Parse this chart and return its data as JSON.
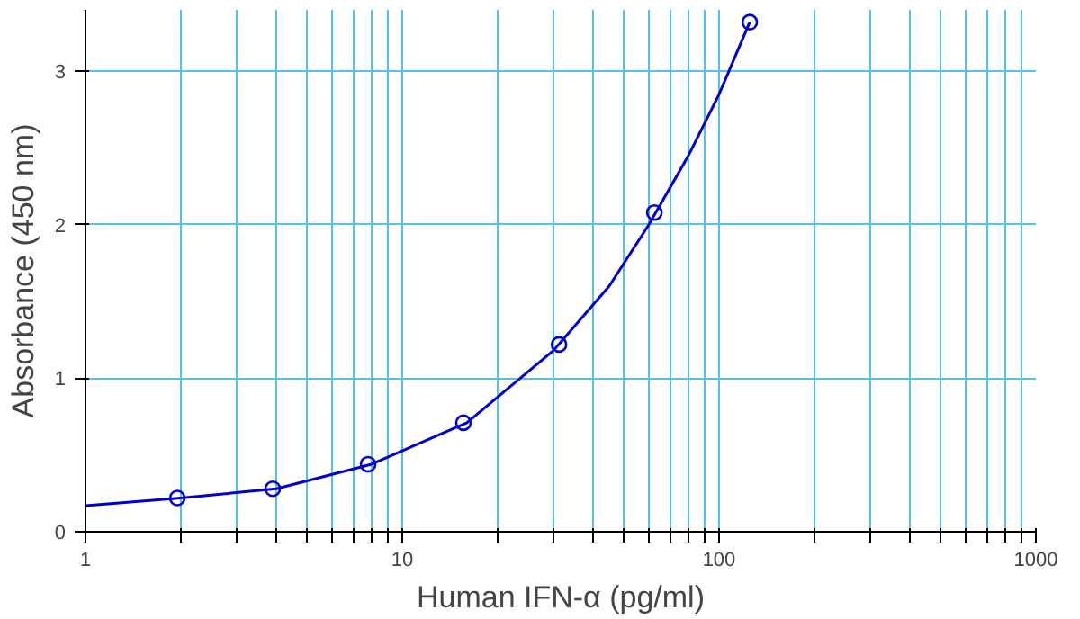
{
  "chart_data": {
    "type": "scatter",
    "xlabel": "Human IFN-α (pg/ml)",
    "ylabel": "Absorbance (450 nm)",
    "log": "x",
    "grid": true,
    "marker": "circle",
    "xlim": [
      1,
      1000
    ],
    "ylim": [
      0,
      3.4
    ],
    "xticks": [
      1,
      {
        "value": 2,
        "label": null
      },
      {
        "value": 3,
        "label": null
      },
      {
        "value": 4,
        "label": null
      },
      {
        "value": 5,
        "label": null
      },
      {
        "value": 6,
        "label": null
      },
      {
        "value": 7,
        "label": null
      },
      {
        "value": 8,
        "label": null
      },
      {
        "value": 9,
        "label": null
      },
      10,
      {
        "value": 20,
        "label": null
      },
      {
        "value": 30,
        "label": null
      },
      {
        "value": 40,
        "label": null
      },
      {
        "value": 50,
        "label": null
      },
      {
        "value": 60,
        "label": null
      },
      {
        "value": 70,
        "label": null
      },
      {
        "value": 80,
        "label": null
      },
      {
        "value": 90,
        "label": null
      },
      100,
      {
        "value": 200,
        "label": null
      },
      {
        "value": 300,
        "label": null
      },
      {
        "value": 400,
        "label": null
      },
      {
        "value": 500,
        "label": null
      },
      {
        "value": 600,
        "label": null
      },
      {
        "value": 700,
        "label": null
      },
      {
        "value": 800,
        "label": null
      },
      {
        "value": 900,
        "label": null
      },
      1000
    ],
    "yticks": [
      0,
      1,
      2,
      3
    ],
    "series": [
      {
        "type": "line",
        "marker": "none",
        "color": "#0000cc",
        "x": [
          1,
          2,
          4,
          8,
          16,
          30,
          45,
          60,
          80,
          100,
          125
        ],
        "values": [
          0.17,
          0.22,
          0.28,
          0.44,
          0.71,
          1.18,
          1.6,
          2.0,
          2.45,
          2.85,
          3.32
        ]
      },
      {
        "color": "#0000cc",
        "x": [
          1.95,
          3.9,
          7.8,
          15.6,
          31.25,
          62.5,
          125
        ],
        "values": [
          0.22,
          0.28,
          0.44,
          0.71,
          1.22,
          2.08,
          3.32
        ]
      }
    ]
  }
}
